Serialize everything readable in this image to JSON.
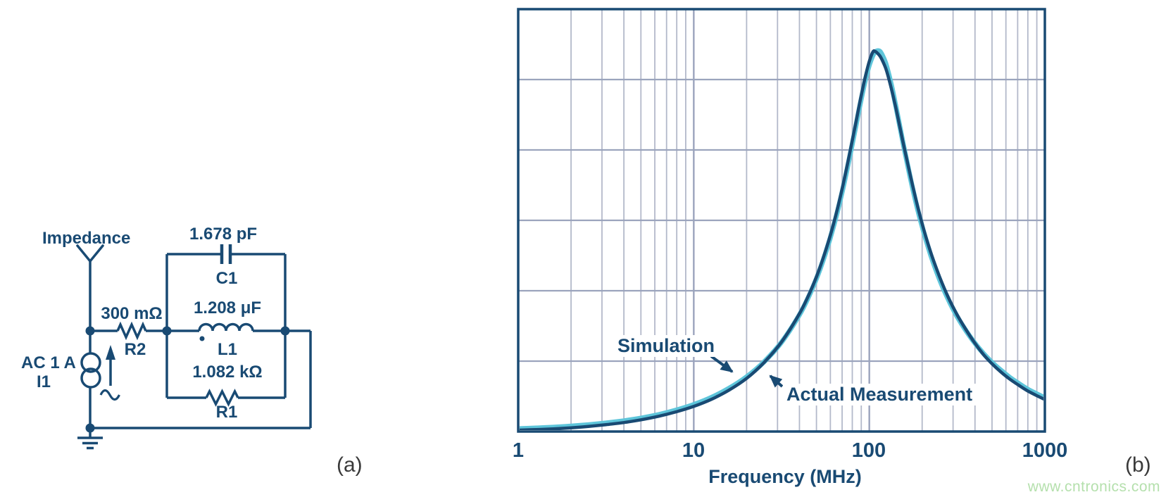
{
  "figure": {
    "panel_a_label": "(a)",
    "panel_b_label": "(b)",
    "watermark": "www.cntronics.com"
  },
  "colors": {
    "navy": "#194a73",
    "cyan": "#5ec5da",
    "grid_minor": "#b3b9ca",
    "grid_major": "#9ba4bd",
    "watermark_green": "#b5e0ad",
    "panel_label_gray": "#3a3a3a"
  },
  "circuit": {
    "impedance_label": "Impedance",
    "source": {
      "value": "AC 1 A",
      "ref": "I1"
    },
    "r2": {
      "value": "300 mΩ",
      "ref": "R2"
    },
    "c1": {
      "value": "1.678 pF",
      "ref": "C1"
    },
    "l1": {
      "value": "1.208 μF",
      "ref": "L1"
    },
    "r1": {
      "value": "1.082 kΩ",
      "ref": "R1"
    }
  },
  "chart_data": {
    "type": "line",
    "title": "",
    "xlabel": "Frequency (MHz)",
    "ylabel": "",
    "x_scale": "log",
    "x_range_mhz": [
      1,
      1000
    ],
    "x_ticks": [
      "1",
      "10",
      "100",
      "1000"
    ],
    "y_scale": "linear",
    "y_range_ohm": [
      0,
      1200
    ],
    "y_grid_step_ohm": 200,
    "grid": true,
    "legend_position": "inline-annotations-with-arrows",
    "resonance_peak_mhz": 112,
    "series": [
      {
        "name": "Simulation",
        "color": "#5ec5da",
        "points_f_mhz_z_ohm": [
          [
            1,
            7.9
          ],
          [
            1.26,
            9.9
          ],
          [
            1.585,
            12.3
          ],
          [
            2,
            15.5
          ],
          [
            2.512,
            19.4
          ],
          [
            3.162,
            24.3
          ],
          [
            3.981,
            30.5
          ],
          [
            5.012,
            38.3
          ],
          [
            6.31,
            48.3
          ],
          [
            7.943,
            60.9
          ],
          [
            10,
            76.6
          ],
          [
            12.59,
            96.7
          ],
          [
            15.85,
            122.6
          ],
          [
            20,
            155.5
          ],
          [
            25.12,
            197.8
          ],
          [
            31.62,
            253.9
          ],
          [
            39.81,
            329.8
          ],
          [
            45,
            381.7
          ],
          [
            50.12,
            436
          ],
          [
            56.23,
            505.6
          ],
          [
            63.1,
            589.6
          ],
          [
            70.79,
            691
          ],
          [
            79.43,
            809
          ],
          [
            84.14,
            872
          ],
          [
            89.13,
            935
          ],
          [
            94.41,
            993
          ],
          [
            100,
            1041
          ],
          [
            105,
            1069
          ],
          [
            108,
            1078
          ],
          [
            111.8,
            1082
          ],
          [
            116,
            1078
          ],
          [
            122,
            1056
          ],
          [
            125.9,
            1036
          ],
          [
            133.4,
            986
          ],
          [
            141.3,
            927
          ],
          [
            149.6,
            864
          ],
          [
            158.5,
            801
          ],
          [
            177.8,
            684
          ],
          [
            199.5,
            584
          ],
          [
            223.9,
            501
          ],
          [
            251.2,
            432
          ],
          [
            281.8,
            375
          ],
          [
            316.2,
            327
          ],
          [
            354.8,
            287
          ],
          [
            398.1,
            252
          ],
          [
            446.7,
            222
          ],
          [
            501.2,
            196
          ],
          [
            562.3,
            174
          ],
          [
            631,
            154
          ],
          [
            707.9,
            137
          ],
          [
            794.3,
            121
          ],
          [
            891.3,
            108
          ],
          [
            1000,
            96
          ]
        ]
      },
      {
        "name": "Actual Measurement",
        "color": "#194a73",
        "points_f_mhz_z_ohm": [
          [
            1,
            4
          ],
          [
            1.26,
            5.5
          ],
          [
            1.585,
            7.5
          ],
          [
            2,
            10.5
          ],
          [
            2.512,
            14.5
          ],
          [
            3.162,
            19.5
          ],
          [
            3.981,
            25.5
          ],
          [
            5.012,
            33.5
          ],
          [
            6.31,
            43.5
          ],
          [
            7.943,
            56
          ],
          [
            10,
            71.5
          ],
          [
            12.59,
            91.5
          ],
          [
            15.85,
            117.5
          ],
          [
            20,
            151
          ],
          [
            25.12,
            196
          ],
          [
            31.62,
            254.5
          ],
          [
            39.81,
            333
          ],
          [
            45,
            386
          ],
          [
            50.12,
            441
          ],
          [
            56.23,
            512
          ],
          [
            63.1,
            597
          ],
          [
            70.79,
            700
          ],
          [
            79.43,
            819
          ],
          [
            84.14,
            882
          ],
          [
            89.13,
            945
          ],
          [
            94.41,
            1003
          ],
          [
            100,
            1052
          ],
          [
            105,
            1079
          ],
          [
            108,
            1080
          ],
          [
            111.8,
            1074
          ],
          [
            116,
            1064
          ],
          [
            122,
            1041
          ],
          [
            125.9,
            1022
          ],
          [
            133.4,
            975
          ],
          [
            141.3,
            922
          ],
          [
            149.6,
            863
          ],
          [
            158.5,
            804
          ],
          [
            177.8,
            692
          ],
          [
            199.5,
            592
          ],
          [
            223.9,
            509
          ],
          [
            251.2,
            440
          ],
          [
            281.8,
            381
          ],
          [
            316.2,
            332
          ],
          [
            354.8,
            290
          ],
          [
            398.1,
            252
          ],
          [
            446.7,
            219
          ],
          [
            501.2,
            192
          ],
          [
            562.3,
            169
          ],
          [
            631,
            149
          ],
          [
            707.9,
            132
          ],
          [
            794.3,
            116
          ],
          [
            891.3,
            103
          ],
          [
            1000,
            91
          ]
        ]
      }
    ]
  }
}
